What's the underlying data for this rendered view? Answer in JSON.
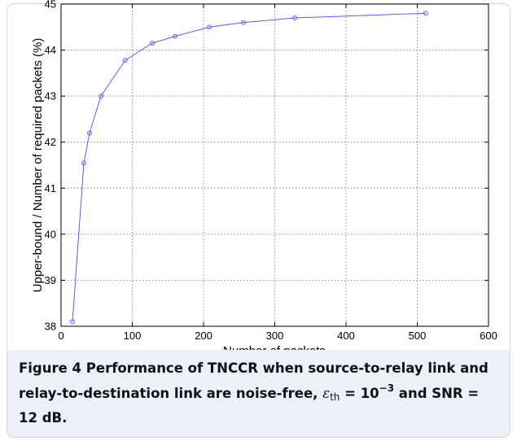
{
  "chart_data": {
    "type": "line",
    "title": "",
    "xlabel": "Number of packets",
    "ylabel": "Upper-bound / Number of required packets (%)",
    "xlim": [
      0,
      600
    ],
    "ylim": [
      38,
      45
    ],
    "xticks": [
      "0",
      "100",
      "200",
      "300",
      "400",
      "500",
      "600"
    ],
    "yticks": [
      "38",
      "39",
      "40",
      "41",
      "42",
      "43",
      "44",
      "45"
    ],
    "grid": true,
    "legend": "none",
    "series": [
      {
        "color": "#5a5aff",
        "marker": "circle",
        "x": [
          16,
          32,
          40,
          56,
          90,
          128,
          160,
          208,
          256,
          328,
          512
        ],
        "y": [
          38.1,
          41.55,
          42.2,
          43.0,
          43.78,
          44.15,
          44.3,
          44.5,
          44.6,
          44.7,
          44.8
        ]
      }
    ]
  },
  "caption": {
    "label": "Figure 4",
    "text_before_symbol": " Performance of TNCCR when source-to-relay link and relay-to-destination link are noise-free, ",
    "symbol": "ε",
    "symbol_sub": "th",
    "equals_base": " = 10",
    "exponent": "−3",
    "text_after": " and SNR = 12 dB."
  }
}
